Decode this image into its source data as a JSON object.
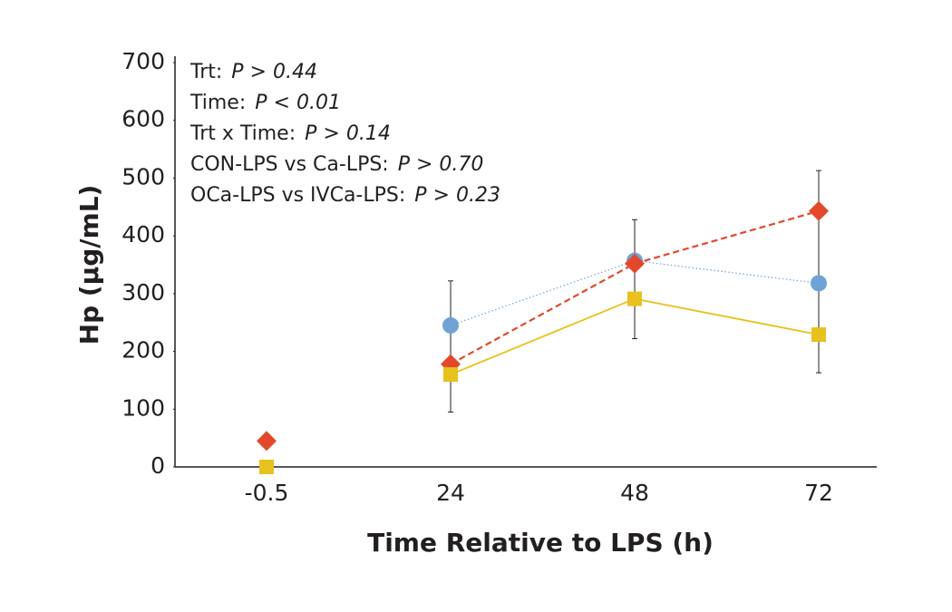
{
  "chart_data": {
    "type": "line",
    "y_label": "Hp (µg/mL)",
    "x_label": "Time Relative to LPS (h)",
    "categories": [
      "-0.5",
      "24",
      "48",
      "72"
    ],
    "ylim": [
      0,
      700
    ],
    "yticks": [
      0,
      100,
      200,
      300,
      400,
      500,
      600,
      700
    ],
    "connect_from_index": 1,
    "series": [
      {
        "color": "#6fa3d6",
        "marker": "circle",
        "line_style": "dotted",
        "values": [
          null,
          245,
          357,
          318
        ]
      },
      {
        "color": "#e2492a",
        "marker": "diamond",
        "line_style": "dashed",
        "values": [
          45,
          178,
          352,
          443
        ]
      },
      {
        "color": "#e8c11c",
        "marker": "square",
        "line_style": "solid",
        "values": [
          0,
          160,
          291,
          229
        ]
      }
    ],
    "error_bars": {
      "low": [
        null,
        95,
        222,
        163
      ],
      "high": [
        null,
        322,
        428,
        513
      ]
    },
    "annotations": [
      {
        "label": "Trt:",
        "p": "P > 0.44"
      },
      {
        "label": "Time:",
        "p": "P < 0.01"
      },
      {
        "label": "Trt x Time:",
        "p": "P > 0.14"
      },
      {
        "label": "CON-LPS vs Ca-LPS:",
        "p": "P > 0.70"
      },
      {
        "label": "OCa-LPS vs IVCa-LPS:",
        "p": "P > 0.23"
      }
    ]
  }
}
